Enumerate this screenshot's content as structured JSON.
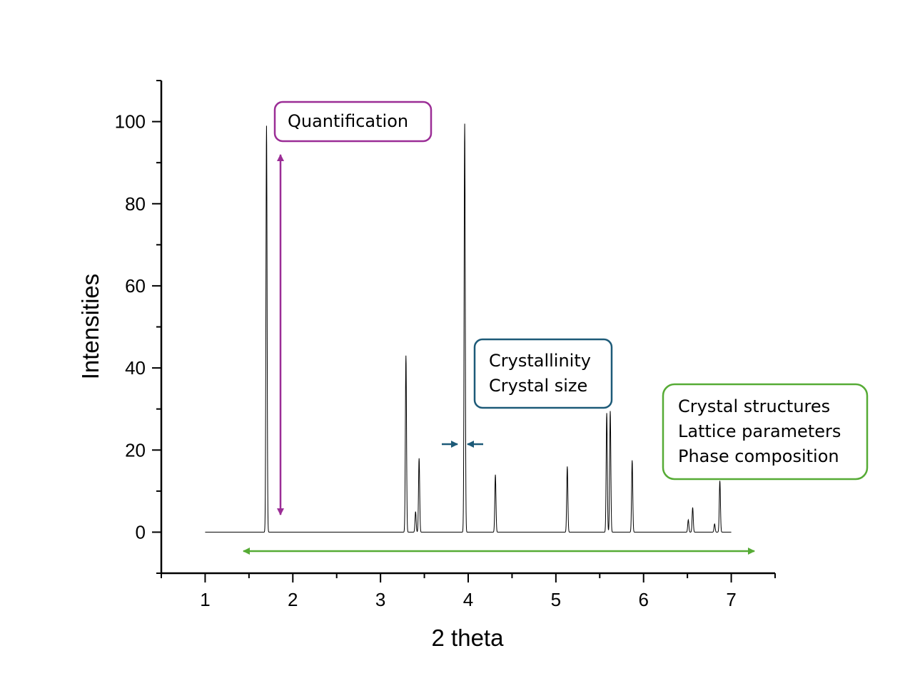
{
  "chart_data": {
    "type": "line",
    "xlabel": "2 theta",
    "ylabel": "Intensities",
    "xlim": [
      0.5,
      7.5
    ],
    "ylim": [
      -10,
      110
    ],
    "x_ticks": [
      1,
      2,
      3,
      4,
      5,
      6,
      7
    ],
    "y_ticks": [
      0,
      20,
      40,
      60,
      80,
      100
    ],
    "grid": false,
    "series": [
      {
        "x_range": [
          1.0,
          7.0
        ],
        "color": "#000000",
        "peaks": [
          {
            "x": 1.7,
            "height": 99
          },
          {
            "x": 3.29,
            "height": 43
          },
          {
            "x": 3.4,
            "height": 5
          },
          {
            "x": 3.44,
            "height": 18
          },
          {
            "x": 3.96,
            "height": 99.5
          },
          {
            "x": 4.31,
            "height": 14
          },
          {
            "x": 5.13,
            "height": 16
          },
          {
            "x": 5.58,
            "height": 29
          },
          {
            "x": 5.62,
            "height": 29.5
          },
          {
            "x": 5.87,
            "height": 17.5
          },
          {
            "x": 6.51,
            "height": 3
          },
          {
            "x": 6.56,
            "height": 6
          },
          {
            "x": 6.81,
            "height": 2
          },
          {
            "x": 6.87,
            "height": 12.5
          }
        ]
      }
    ],
    "annotations": [
      {
        "lines": [
          "Quantification"
        ],
        "color": "#9b2d96"
      },
      {
        "lines": [
          "Crystallinity",
          "Crystal size"
        ],
        "color": "#1d5a78"
      },
      {
        "lines": [
          "Crystal structures",
          "Lattice parameters",
          "Phase composition"
        ],
        "color": "#56ab35"
      }
    ]
  }
}
